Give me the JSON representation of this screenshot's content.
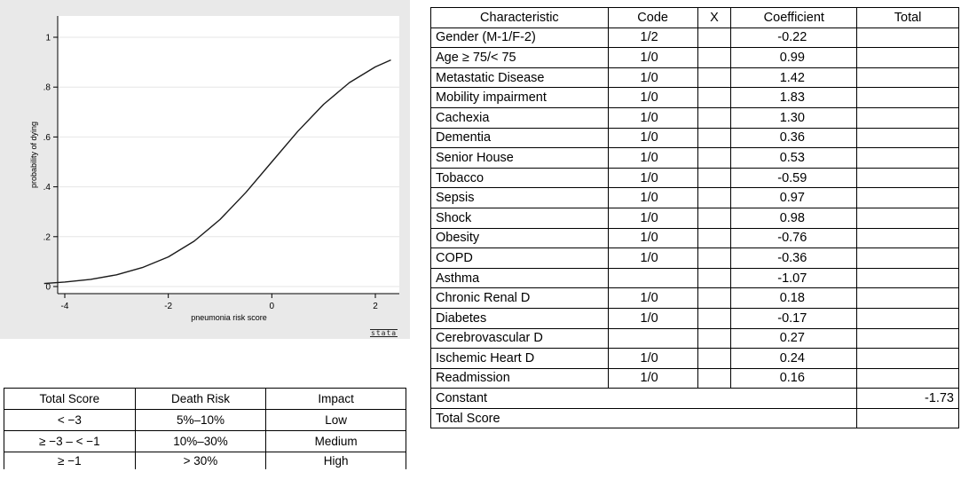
{
  "chart_data": {
    "type": "line",
    "xlabel": "pneumonia risk score",
    "ylabel": "probability of dying",
    "xlim": [
      -4.5,
      2.5
    ],
    "ylim": [
      0,
      1
    ],
    "x_ticks": [
      -4,
      -2,
      0,
      2
    ],
    "x_tick_labels": [
      "-4",
      "-2",
      "0",
      "2"
    ],
    "y_ticks": [
      0,
      0.2,
      0.4,
      0.6,
      0.8,
      1
    ],
    "y_tick_labels": [
      "0",
      ".2",
      ".4",
      ".6",
      ".8",
      "1"
    ],
    "grid": true,
    "series": [
      {
        "x": [
          -4.4,
          -4.0,
          -3.5,
          -3.0,
          -2.5,
          -2.0,
          -1.5,
          -1.0,
          -0.5,
          0.0,
          0.5,
          1.0,
          1.5,
          2.0,
          2.3
        ],
        "y": [
          0.012,
          0.018,
          0.029,
          0.047,
          0.076,
          0.119,
          0.182,
          0.269,
          0.378,
          0.5,
          0.622,
          0.731,
          0.818,
          0.881,
          0.909
        ]
      }
    ],
    "line_color": "#1a1a1a",
    "plot_background": "#ffffff",
    "panel_background": "#e9e9e9",
    "watermark": "stata"
  },
  "coef_table": {
    "headers": [
      "Characteristic",
      "Code",
      "X",
      "Coefficient",
      "Total"
    ],
    "rows": [
      {
        "characteristic": "Gender (M-1/F-2)",
        "code": "1/2",
        "x": "",
        "coefficient": "-0.22",
        "total": ""
      },
      {
        "characteristic": "Age ≥ 75/< 75",
        "code": "1/0",
        "x": "",
        "coefficient": "0.99",
        "total": ""
      },
      {
        "characteristic": "Metastatic Disease",
        "code": "1/0",
        "x": "",
        "coefficient": "1.42",
        "total": ""
      },
      {
        "characteristic": "Mobility impairment",
        "code": "1/0",
        "x": "",
        "coefficient": "1.83",
        "total": ""
      },
      {
        "characteristic": "Cachexia",
        "code": "1/0",
        "x": "",
        "coefficient": "1.30",
        "total": ""
      },
      {
        "characteristic": "Dementia",
        "code": "1/0",
        "x": "",
        "coefficient": "0.36",
        "total": ""
      },
      {
        "characteristic": "Senior House",
        "code": "1/0",
        "x": "",
        "coefficient": "0.53",
        "total": ""
      },
      {
        "characteristic": "Tobacco",
        "code": "1/0",
        "x": "",
        "coefficient": "-0.59",
        "total": ""
      },
      {
        "characteristic": "Sepsis",
        "code": "1/0",
        "x": "",
        "coefficient": "0.97",
        "total": ""
      },
      {
        "characteristic": "Shock",
        "code": "1/0",
        "x": "",
        "coefficient": "0.98",
        "total": ""
      },
      {
        "characteristic": "Obesity",
        "code": "1/0",
        "x": "",
        "coefficient": "-0.76",
        "total": ""
      },
      {
        "characteristic": "COPD",
        "code": "1/0",
        "x": "",
        "coefficient": "-0.36",
        "total": ""
      },
      {
        "characteristic": "Asthma",
        "code": "",
        "x": "",
        "coefficient": "-1.07",
        "total": ""
      },
      {
        "characteristic": "Chronic Renal D",
        "code": "1/0",
        "x": "",
        "coefficient": "0.18",
        "total": ""
      },
      {
        "characteristic": "Diabetes",
        "code": "1/0",
        "x": "",
        "coefficient": "-0.17",
        "total": ""
      },
      {
        "characteristic": "Cerebrovascular D",
        "code": "",
        "x": "",
        "coefficient": "0.27",
        "total": ""
      },
      {
        "characteristic": "Ischemic Heart D",
        "code": "1/0",
        "x": "",
        "coefficient": "0.24",
        "total": ""
      },
      {
        "characteristic": "Readmission",
        "code": "1/0",
        "x": "",
        "coefficient": "0.16",
        "total": ""
      }
    ],
    "constant": {
      "label": "Constant",
      "total": "-1.73"
    },
    "total_score": {
      "label": "Total Score",
      "total": ""
    }
  },
  "risk_table": {
    "headers": [
      "Total Score",
      "Death Risk",
      "Impact"
    ],
    "rows": [
      {
        "score": "< −3",
        "risk": "5%–10%",
        "impact": "Low"
      },
      {
        "score": "≥ −3 – < −1",
        "risk": "10%–30%",
        "impact": "Medium"
      },
      {
        "score": "≥ −1",
        "risk": "> 30%",
        "impact": "High"
      }
    ]
  }
}
